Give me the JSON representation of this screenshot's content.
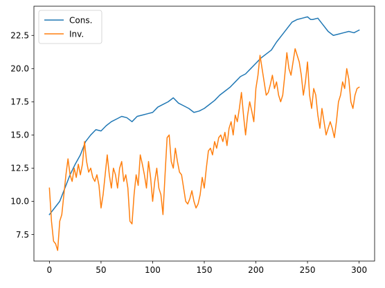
{
  "chart_data": {
    "type": "line",
    "title": "",
    "xlabel": "",
    "ylabel": "",
    "xlim": [
      -15,
      315
    ],
    "ylim": [
      5.5,
      24.7
    ],
    "x_ticks": [
      0,
      50,
      100,
      150,
      200,
      250,
      300
    ],
    "x_tick_labels": [
      "0",
      "50",
      "100",
      "150",
      "200",
      "250",
      "300"
    ],
    "y_ticks": [
      7.5,
      10.0,
      12.5,
      15.0,
      17.5,
      20.0,
      22.5
    ],
    "y_tick_labels": [
      "7.5",
      "10.0",
      "12.5",
      "15.0",
      "17.5",
      "20.0",
      "22.5"
    ],
    "grid": false,
    "legend_position": "top-left",
    "series": [
      {
        "name": "Cons.",
        "color": "#1f77b4",
        "x": [
          0,
          5,
          10,
          15,
          20,
          25,
          30,
          35,
          40,
          45,
          50,
          55,
          60,
          65,
          70,
          75,
          80,
          85,
          90,
          95,
          100,
          105,
          110,
          115,
          120,
          125,
          130,
          135,
          140,
          145,
          150,
          155,
          160,
          165,
          170,
          175,
          180,
          185,
          190,
          195,
          200,
          205,
          210,
          215,
          220,
          225,
          230,
          235,
          240,
          245,
          250,
          253,
          255,
          260,
          265,
          270,
          275,
          280,
          285,
          290,
          295,
          300
        ],
        "values": [
          9.0,
          9.5,
          10.0,
          11.0,
          12.0,
          12.8,
          13.5,
          14.5,
          15.0,
          15.4,
          15.3,
          15.7,
          16.0,
          16.2,
          16.4,
          16.3,
          16.0,
          16.4,
          16.5,
          16.6,
          16.7,
          17.1,
          17.3,
          17.5,
          17.8,
          17.4,
          17.2,
          17.0,
          16.7,
          16.8,
          17.0,
          17.3,
          17.6,
          18.0,
          18.3,
          18.6,
          19.0,
          19.4,
          19.6,
          20.0,
          20.4,
          20.8,
          21.1,
          21.4,
          22.0,
          22.5,
          23.0,
          23.5,
          23.7,
          23.8,
          23.9,
          23.7,
          23.7,
          23.8,
          23.3,
          22.8,
          22.5,
          22.6,
          22.7,
          22.8,
          22.7,
          22.9
        ]
      },
      {
        "name": "Inv.",
        "color": "#ff7f0e",
        "x": [
          0,
          2,
          4,
          6,
          8,
          10,
          12,
          14,
          16,
          18,
          20,
          22,
          24,
          26,
          28,
          30,
          32,
          34,
          36,
          38,
          40,
          42,
          44,
          46,
          48,
          50,
          52,
          54,
          56,
          58,
          60,
          62,
          64,
          66,
          68,
          70,
          72,
          74,
          76,
          78,
          80,
          82,
          84,
          86,
          88,
          90,
          92,
          94,
          96,
          98,
          100,
          102,
          104,
          106,
          108,
          110,
          112,
          114,
          116,
          118,
          120,
          122,
          124,
          126,
          128,
          130,
          132,
          134,
          136,
          138,
          140,
          142,
          144,
          146,
          148,
          150,
          152,
          154,
          156,
          158,
          160,
          162,
          164,
          166,
          168,
          170,
          172,
          174,
          176,
          178,
          180,
          182,
          184,
          186,
          188,
          190,
          192,
          194,
          196,
          198,
          200,
          202,
          204,
          206,
          208,
          210,
          212,
          214,
          216,
          218,
          220,
          222,
          224,
          226,
          228,
          230,
          232,
          234,
          236,
          238,
          240,
          242,
          244,
          246,
          248,
          250,
          252,
          254,
          256,
          258,
          260,
          262,
          264,
          266,
          268,
          270,
          272,
          274,
          276,
          278,
          280,
          282,
          284,
          286,
          288,
          290,
          292,
          294,
          296,
          298,
          300
        ],
        "values": [
          11.0,
          8.5,
          7.0,
          6.8,
          6.3,
          8.5,
          9.0,
          10.5,
          12.0,
          13.2,
          12.0,
          11.5,
          12.5,
          11.8,
          12.8,
          12.0,
          12.8,
          14.5,
          13.0,
          12.2,
          12.5,
          11.8,
          11.5,
          12.0,
          11.2,
          9.5,
          10.5,
          12.0,
          13.5,
          12.0,
          11.0,
          12.5,
          12.0,
          11.0,
          12.5,
          13.0,
          11.5,
          12.0,
          11.0,
          8.5,
          8.3,
          10.5,
          12.0,
          11.2,
          13.5,
          12.8,
          12.0,
          11.0,
          13.0,
          11.8,
          10.0,
          11.5,
          12.5,
          11.0,
          10.5,
          9.0,
          12.0,
          14.8,
          15.0,
          13.0,
          12.5,
          14.0,
          13.0,
          12.2,
          12.0,
          11.0,
          10.0,
          9.8,
          10.2,
          10.8,
          10.0,
          9.5,
          9.8,
          10.5,
          11.8,
          11.0,
          12.5,
          13.8,
          14.0,
          13.5,
          14.5,
          14.0,
          14.8,
          15.0,
          14.5,
          15.2,
          14.2,
          15.5,
          16.0,
          15.0,
          16.5,
          16.0,
          17.0,
          18.2,
          16.5,
          15.0,
          16.5,
          17.5,
          16.8,
          16.0,
          18.5,
          19.5,
          21.0,
          20.0,
          19.0,
          18.0,
          18.2,
          18.8,
          19.5,
          18.5,
          19.0,
          18.0,
          17.5,
          18.0,
          19.5,
          21.2,
          20.0,
          19.5,
          20.5,
          21.5,
          21.0,
          20.5,
          19.5,
          18.0,
          19.0,
          20.5,
          18.0,
          17.0,
          18.5,
          18.0,
          16.5,
          15.5,
          17.0,
          16.0,
          15.0,
          15.5,
          16.0,
          15.5,
          14.8,
          16.0,
          17.5,
          18.0,
          19.0,
          18.5,
          20.0,
          19.2,
          17.5,
          17.0,
          18.0,
          18.5,
          18.6
        ]
      }
    ]
  }
}
